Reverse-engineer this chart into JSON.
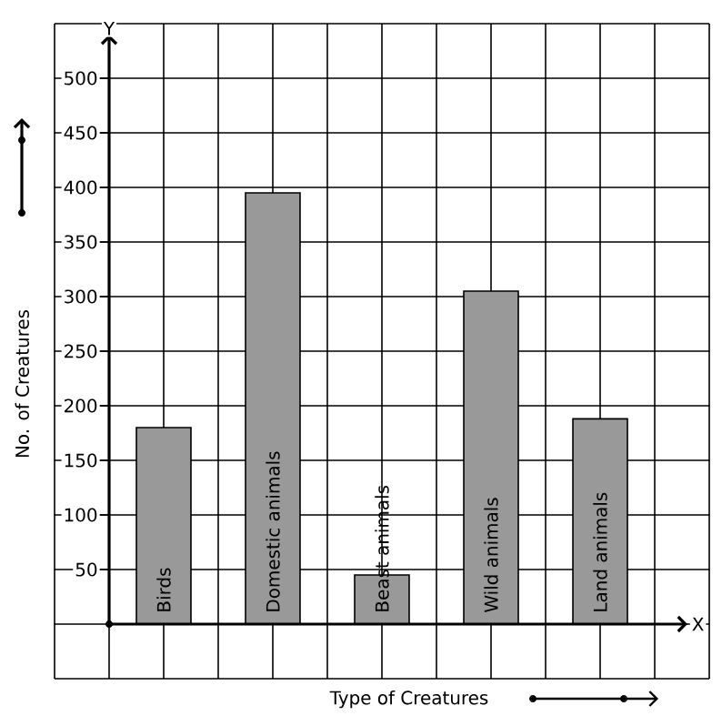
{
  "chart_data": {
    "type": "bar",
    "xlabel": "Type of Creatures",
    "ylabel": "No. of Creatures",
    "categories": [
      "Birds",
      "Domestic animals",
      "Beast animals",
      "Wild animals",
      "Land animals"
    ],
    "values": [
      180,
      395,
      45,
      305,
      188
    ],
    "color": "#999999",
    "ylim": [
      -50,
      550
    ],
    "yticks": [
      50,
      100,
      150,
      200,
      250,
      300,
      350,
      400,
      450,
      500
    ],
    "grid": true,
    "annotations": [
      "Y",
      "X"
    ]
  }
}
